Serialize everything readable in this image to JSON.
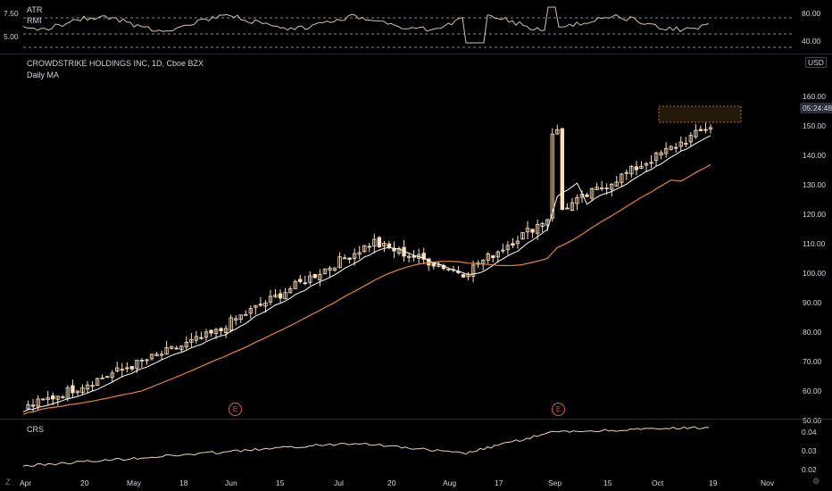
{
  "atr_pane": {
    "title_atr": "ATR",
    "title_rmi": "RMI",
    "left_ticks": [
      "7.50",
      "5.00"
    ],
    "right_ticks": [
      "80.00",
      "40.00"
    ]
  },
  "main_pane": {
    "symbol": "CROWDSTRIKE HOLDINGS INC, 1D, Cboe BZX",
    "indicator": "Daily MA",
    "currency": "USD",
    "countdown": "05:24:48",
    "price_ticks": [
      "160.00",
      "150.00",
      "140.00",
      "130.00",
      "120.00",
      "110.00",
      "100.00",
      "90.00",
      "80.00",
      "70.00",
      "60.00",
      "50.00"
    ],
    "earnings_marker": "E"
  },
  "crs_pane": {
    "title": "CRS",
    "ticks": [
      "0.04",
      "0.03",
      "0.02"
    ]
  },
  "time_axis": {
    "labels": [
      "Apr",
      "20",
      "May",
      "18",
      "Jun",
      "15",
      "Jul",
      "20",
      "Aug",
      "17",
      "Sep",
      "15",
      "Oct",
      "19",
      "Nov"
    ]
  },
  "corner_icons": {
    "left": "Z",
    "right": "⚙"
  },
  "colors": {
    "candle": "#fbe0b8",
    "ma_fast": "#ffffff",
    "ma_slow": "#e8852e",
    "rmi_line": "#d8c3a5",
    "crs_line": "#f0d6b0",
    "earnings": "#e65a3c",
    "grid_dash": "#b2b5be"
  }
}
